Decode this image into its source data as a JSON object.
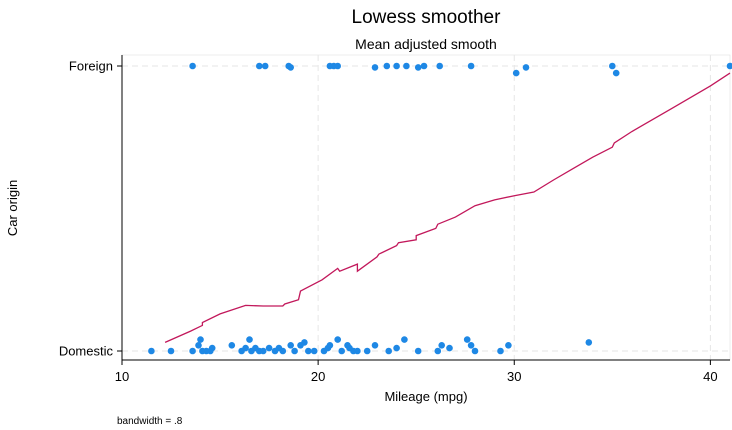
{
  "chart_data": {
    "type": "scatter",
    "title": "Lowess smoother",
    "subtitle": "Mean adjusted smooth",
    "xlabel": "Mileage (mpg)",
    "ylabel": "Car origin",
    "xlim": [
      10,
      41
    ],
    "ylim": [
      0,
      1
    ],
    "xticks": [
      10,
      20,
      30,
      40
    ],
    "yticks": [
      {
        "value": 0,
        "label": "Domestic"
      },
      {
        "value": 1,
        "label": "Foreign"
      }
    ],
    "grid": true,
    "note": "bandwidth = .8",
    "colors": {
      "points": "#1e88e5",
      "smooth": "#c2185b",
      "grid": "#e6e6e6"
    },
    "series": [
      {
        "type": "scatter",
        "points": [
          [
            11.5,
            0
          ],
          [
            12.5,
            0
          ],
          [
            13.6,
            0
          ],
          [
            13.9,
            0.02
          ],
          [
            14.0,
            0.04
          ],
          [
            14.1,
            0
          ],
          [
            14.3,
            0
          ],
          [
            14.5,
            0
          ],
          [
            14.6,
            0.01
          ],
          [
            15.6,
            0.02
          ],
          [
            16.1,
            0
          ],
          [
            16.3,
            0.01
          ],
          [
            16.5,
            0.04
          ],
          [
            16.6,
            0
          ],
          [
            16.8,
            0.01
          ],
          [
            17.0,
            0
          ],
          [
            17.2,
            0
          ],
          [
            17.5,
            0.01
          ],
          [
            17.8,
            0
          ],
          [
            18.0,
            0.01
          ],
          [
            18.2,
            0
          ],
          [
            18.6,
            0.02
          ],
          [
            18.8,
            0
          ],
          [
            19.1,
            0.02
          ],
          [
            19.3,
            0.03
          ],
          [
            19.5,
            0
          ],
          [
            19.8,
            0
          ],
          [
            20.3,
            0
          ],
          [
            20.5,
            0.01
          ],
          [
            20.6,
            0.02
          ],
          [
            21.0,
            0.04
          ],
          [
            21.2,
            0
          ],
          [
            21.5,
            0.02
          ],
          [
            21.6,
            0.01
          ],
          [
            21.8,
            0
          ],
          [
            22.0,
            0
          ],
          [
            22.5,
            0
          ],
          [
            22.9,
            0.02
          ],
          [
            23.6,
            0
          ],
          [
            24.0,
            0.01
          ],
          [
            24.4,
            0.04
          ],
          [
            25.1,
            0
          ],
          [
            26.1,
            0
          ],
          [
            26.3,
            0.02
          ],
          [
            26.7,
            0.01
          ],
          [
            27.6,
            0.04
          ],
          [
            27.8,
            0.02
          ],
          [
            28.0,
            0
          ],
          [
            29.3,
            0
          ],
          [
            29.7,
            0.02
          ],
          [
            33.8,
            0.03
          ],
          [
            13.6,
            1
          ],
          [
            17.0,
            1
          ],
          [
            17.3,
            1
          ],
          [
            18.5,
            1
          ],
          [
            18.6,
            0.995
          ],
          [
            20.6,
            1
          ],
          [
            20.8,
            1
          ],
          [
            21.0,
            1
          ],
          [
            22.9,
            0.995
          ],
          [
            23.5,
            1
          ],
          [
            24.0,
            1
          ],
          [
            24.5,
            1
          ],
          [
            25.1,
            0.995
          ],
          [
            25.4,
            1
          ],
          [
            26.2,
            1
          ],
          [
            27.8,
            1
          ],
          [
            30.1,
            0.975
          ],
          [
            30.6,
            0.995
          ],
          [
            35.0,
            1
          ],
          [
            35.2,
            0.975
          ],
          [
            41.0,
            1
          ]
        ]
      },
      {
        "type": "line",
        "name": "",
        "points": [
          [
            12.2,
            0.03
          ],
          [
            13.5,
            0.07
          ],
          [
            14.1,
            0.09
          ],
          [
            14.1,
            0.1
          ],
          [
            15.0,
            0.13
          ],
          [
            16.3,
            0.16
          ],
          [
            17.2,
            0.158
          ],
          [
            18.2,
            0.158
          ],
          [
            18.3,
            0.165
          ],
          [
            19.0,
            0.18
          ],
          [
            19.1,
            0.21
          ],
          [
            20.2,
            0.25
          ],
          [
            21.0,
            0.29
          ],
          [
            21.1,
            0.28
          ],
          [
            22.0,
            0.305
          ],
          [
            22.0,
            0.28
          ],
          [
            23.0,
            0.33
          ],
          [
            23.1,
            0.34
          ],
          [
            24.0,
            0.37
          ],
          [
            24.1,
            0.38
          ],
          [
            25.0,
            0.39
          ],
          [
            25.0,
            0.405
          ],
          [
            26.0,
            0.43
          ],
          [
            26.1,
            0.445
          ],
          [
            27.0,
            0.47
          ],
          [
            28.0,
            0.51
          ],
          [
            29.0,
            0.53
          ],
          [
            30.0,
            0.545
          ],
          [
            31.0,
            0.558
          ],
          [
            32.0,
            0.6
          ],
          [
            33.0,
            0.64
          ],
          [
            34.0,
            0.68
          ],
          [
            35.0,
            0.715
          ],
          [
            35.1,
            0.73
          ],
          [
            36.0,
            0.77
          ],
          [
            38.0,
            0.85
          ],
          [
            40.0,
            0.93
          ],
          [
            41.0,
            0.975
          ]
        ]
      }
    ]
  }
}
